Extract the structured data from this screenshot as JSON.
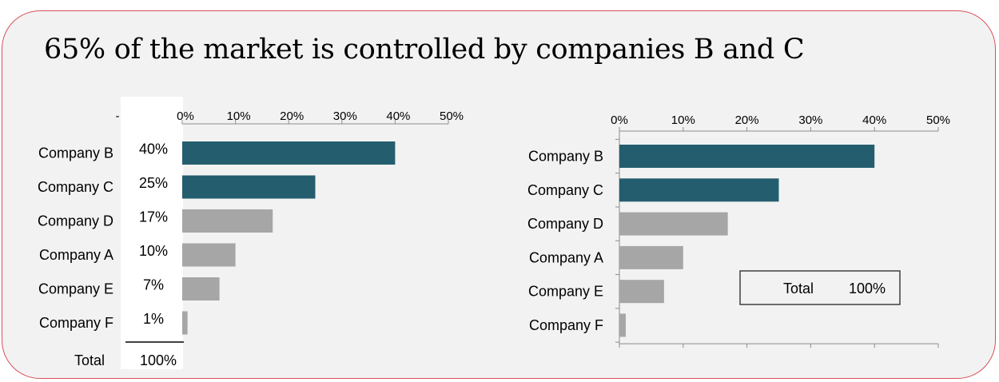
{
  "title": "65% of the market is controlled by companies B and C",
  "colors": {
    "highlight": "#245e6e",
    "muted": "#a6a6a6",
    "frame": "#d9505a",
    "panel": "#f2f2f2"
  },
  "chart_data": [
    {
      "type": "bar",
      "orientation": "horizontal",
      "categories": [
        "Company B",
        "Company C",
        "Company D",
        "Company A",
        "Company E",
        "Company F"
      ],
      "values": [
        40,
        25,
        17,
        10,
        7,
        1
      ],
      "value_labels": [
        "40%",
        "25%",
        "17%",
        "10%",
        "7%",
        "1%"
      ],
      "highlighted": [
        "Company B",
        "Company C"
      ],
      "xlim": [
        0,
        50
      ],
      "ticks": [
        0,
        10,
        20,
        30,
        40,
        50
      ],
      "tick_labels": [
        "0%",
        "10%",
        "20%",
        "30%",
        "40%",
        "50%"
      ],
      "axis_position": "top",
      "extra_tick_label": "-",
      "total_label": "Total",
      "total_value": "100%"
    },
    {
      "type": "bar",
      "orientation": "horizontal",
      "categories": [
        "Company B",
        "Company C",
        "Company D",
        "Company A",
        "Company E",
        "Company F"
      ],
      "values": [
        40,
        25,
        17,
        10,
        7,
        1
      ],
      "highlighted": [
        "Company B",
        "Company C"
      ],
      "xlim": [
        0,
        50
      ],
      "ticks": [
        0,
        10,
        20,
        30,
        40,
        50
      ],
      "tick_labels": [
        "0%",
        "10%",
        "20%",
        "30%",
        "40%",
        "50%"
      ],
      "axis_position": "top",
      "total_label": "Total",
      "total_value": "100%"
    }
  ]
}
